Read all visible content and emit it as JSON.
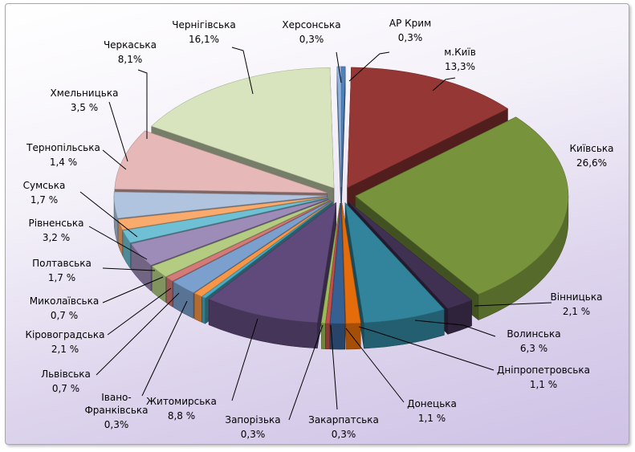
{
  "chart_data": {
    "type": "pie",
    "style": "3d-exploded",
    "legend": "none",
    "slices": [
      {
        "name": "АР Крим",
        "value_label": "0,3%",
        "value": 0.3,
        "color": "#4f81bd"
      },
      {
        "name": "м.Київ",
        "value_label": "13,3%",
        "value": 13.3,
        "color": "#953735"
      },
      {
        "name": "Київська",
        "value_label": "26,6%",
        "value": 26.6,
        "color": "#77933c"
      },
      {
        "name": "Вінницька",
        "value_label": "2,1 %",
        "value": 2.1,
        "color": "#403152"
      },
      {
        "name": "Волинська",
        "value_label": "6,3 %",
        "value": 6.3,
        "color": "#31849b"
      },
      {
        "name": "Дніпропетровська",
        "value_label": "1,1 %",
        "value": 1.1,
        "color": "#e46c0a"
      },
      {
        "name": "Донецька",
        "value_label": "1,1 %",
        "value": 1.1,
        "color": "#376092"
      },
      {
        "name": "Закарпатська",
        "value_label": "0,3%",
        "value": 0.3,
        "color": "#c0504d"
      },
      {
        "name": "Запорізька",
        "value_label": "0,3%",
        "value": 0.3,
        "color": "#9bbb59"
      },
      {
        "name": "Житомирська",
        "value_label": "8,8 %",
        "value": 8.8,
        "color": "#604a7b"
      },
      {
        "name": "Івано-Франківська",
        "name_lines": [
          "Івано-",
          "Франківська"
        ],
        "value_label": "0,3%",
        "value": 0.3,
        "color": "#4bacc6"
      },
      {
        "name": "Львівська",
        "value_label": "0,7 %",
        "value": 0.7,
        "color": "#f79646"
      },
      {
        "name": "Кіровоградська",
        "value_label": "2,1 %",
        "value": 2.1,
        "color": "#7ba0cd"
      },
      {
        "name": "Миколаївська",
        "value_label": "0,7 %",
        "value": 0.7,
        "color": "#d47a78"
      },
      {
        "name": "Полтавська",
        "value_label": "1,7 %",
        "value": 1.7,
        "color": "#b3cc82"
      },
      {
        "name": "Рівненська",
        "value_label": "3,2 %",
        "value": 3.2,
        "color": "#9e8cb8"
      },
      {
        "name": "Сумська",
        "value_label": "1,7 %",
        "value": 1.7,
        "color": "#6fc0d5"
      },
      {
        "name": "Тернопільська",
        "value_label": "1,4 %",
        "value": 1.4,
        "color": "#f9ab6d"
      },
      {
        "name": "Хмельницька",
        "value_label": "3,5 %",
        "value": 3.5,
        "color": "#b0c4e0"
      },
      {
        "name": "Черкаська",
        "value_label": "8,1%",
        "value": 8.1,
        "color": "#e6b9b8"
      },
      {
        "name": "Чернігівська",
        "value_label": "16,1%",
        "value": 16.1,
        "color": "#d7e4bd"
      },
      {
        "name": "Херсонська",
        "value_label": "0,3%",
        "value": 0.3,
        "color": "#8eb4e3"
      }
    ]
  }
}
